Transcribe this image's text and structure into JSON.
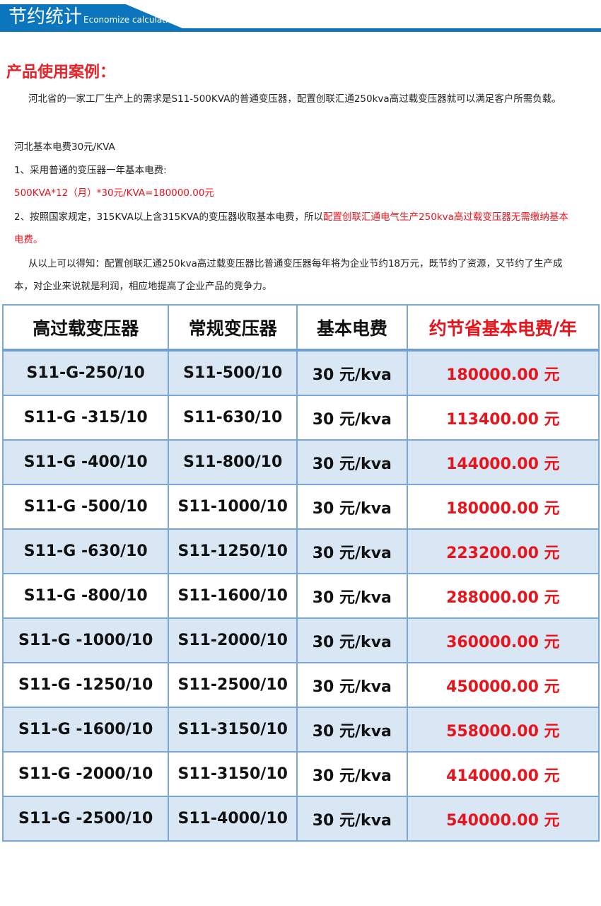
{
  "banner": {
    "title": "节约统计",
    "subtitle": "Economize calculation",
    "color": "#0b76be"
  },
  "section": {
    "heading": "产品使用案例："
  },
  "paragraphs": {
    "p1": "河北省的一家工厂生产上的需求是S11-500KVA的普通变压器，配置创联汇通250kva高过载变压器就可以满足客户所需负载。",
    "p2": "河北基本电费30元/KVA",
    "p3": "1、采用普通的变压器一年基本电费:",
    "p4": "500KVA*12（月）*30元/KVA=180000.00元",
    "p5_normal": "2、按照国家规定，315KVA以上含315KVA的变压器收取基本电费，所以",
    "p5_red": "配置创联汇通电气生产250kva高过载变压器无需缴纳基本电费。",
    "p6": "从以上可以得知：配置创联汇通250kva高过载变压器比普通变压器每年将为企业节约18万元，既节约了资源，又节约了生产成本，对企业来说就是利润，相应地提高了企业产品的竞争力。"
  },
  "table": {
    "headers": [
      "高过载变压器",
      "常规变压器",
      "基本电费",
      "约节省基本电费/年"
    ],
    "rows": [
      [
        "S11-G-250/10",
        "S11-500/10",
        "30 元/kva",
        "180000.00 元"
      ],
      [
        "S11-G -315/10",
        "S11-630/10",
        "30 元/kva",
        "113400.00 元"
      ],
      [
        "S11-G -400/10",
        "S11-800/10",
        "30 元/kva",
        "144000.00 元"
      ],
      [
        "S11-G -500/10",
        "S11-1000/10",
        "30 元/kva",
        "180000.00 元"
      ],
      [
        "S11-G -630/10",
        "S11-1250/10",
        "30 元/kva",
        "223200.00 元"
      ],
      [
        "S11-G -800/10",
        "S11-1600/10",
        "30 元/kva",
        "288000.00 元"
      ],
      [
        "S11-G -1000/10",
        "S11-2000/10",
        "30 元/kva",
        "360000.00 元"
      ],
      [
        "S11-G -1250/10",
        "S11-2500/10",
        "30 元/kva",
        "450000.00 元"
      ],
      [
        "S11-G -1600/10",
        "S11-3150/10",
        "30 元/kva",
        "558000.00 元"
      ],
      [
        "S11-G -2000/10",
        "S11-3150/10",
        "30 元/kva",
        "414000.00 元"
      ],
      [
        "S11-G -2500/10",
        "S11-4000/10",
        "30 元/kva",
        "540000.00 元"
      ]
    ]
  }
}
